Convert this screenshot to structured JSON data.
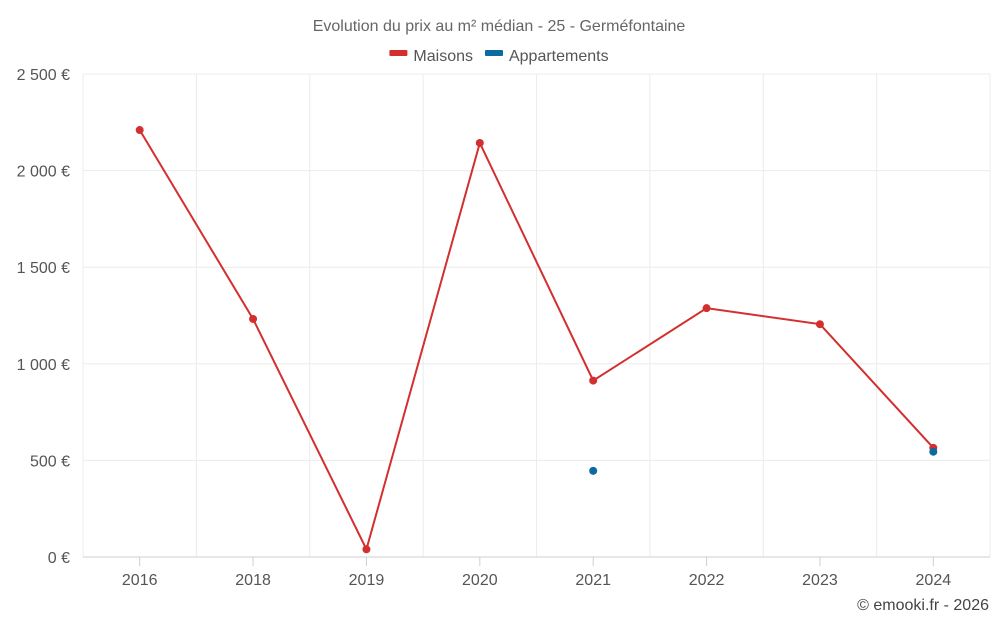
{
  "chart_data": {
    "type": "line",
    "title": "Evolution du prix au m² médian - 25 - Germéfontaine",
    "categories": [
      "2016",
      "2018",
      "2019",
      "2020",
      "2021",
      "2022",
      "2023",
      "2024"
    ],
    "ylim": [
      0,
      2500
    ],
    "y_ticks": [
      0,
      500,
      1000,
      1500,
      2000,
      2500
    ],
    "y_tick_labels": [
      "0 €",
      "500 €",
      "1 000 €",
      "1 500 €",
      "2 000 €",
      "2 500 €"
    ],
    "grid": true,
    "legend_position": "top-center",
    "series": [
      {
        "name": "Maisons",
        "color": "#d32f2f",
        "values": [
          2210,
          1232,
          40,
          2143,
          913,
          1288,
          1205,
          565
        ],
        "line": true
      },
      {
        "name": "Appartements",
        "color": "#0a6aa1",
        "values": [
          null,
          null,
          null,
          null,
          446,
          null,
          null,
          545
        ],
        "line": true
      }
    ]
  },
  "credit": "© emooki.fr - 2026"
}
